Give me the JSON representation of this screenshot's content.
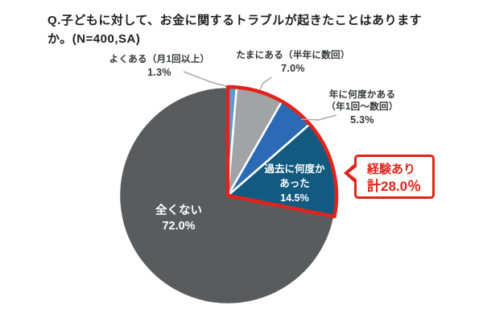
{
  "title": {
    "line1": "Q.子どもに対して、お金に関するトラブルが起きたことはあります",
    "line2": "か。(N=400,SA)"
  },
  "chart_data": {
    "type": "pie",
    "title": "Q.子どもに対して、お金に関するトラブルが起きたことはありますか。",
    "sample": "N=400,SA",
    "unit": "%",
    "direction": "clockwise",
    "start_angle": "12-o-clock",
    "slices": [
      {
        "label": "よくある（月1回以上）",
        "value": 1.3,
        "color": "#5b9bd5"
      },
      {
        "label": "たまにある（半年に数回）",
        "value": 7.0,
        "color": "#a2a3a5"
      },
      {
        "label": "年に何度かある（年1回〜数回）",
        "value": 5.3,
        "color": "#2b6ab5"
      },
      {
        "label": "過去に何度かあった",
        "value": 14.5,
        "color": "#135a80"
      },
      {
        "label": "全くない",
        "value": 72.0,
        "color": "#5a5b5d"
      }
    ],
    "highlight": {
      "label": "経験あり",
      "total_label": "計28.0%",
      "total_value": 28.0,
      "slice_count": 4,
      "color": "#e0241b"
    },
    "legend_position": "none",
    "grid": false
  },
  "labels": {
    "yokuaru": {
      "text": "よくある（月1回以上）",
      "pct": "1.3%"
    },
    "tamani": {
      "text": "たまにある（半年に数回）",
      "pct": "7.0%"
    },
    "nenni": {
      "line1": "年に何度かある",
      "line2": "（年1回〜数回）",
      "pct": "5.3%"
    },
    "kako": {
      "line1": "過去に何度か",
      "line2": "あった",
      "pct": "14.5%"
    },
    "zenkunai": {
      "text": "全くない",
      "pct": "72.0%"
    }
  },
  "callout": {
    "line1": "経験あり",
    "line2": "計28.0％"
  }
}
